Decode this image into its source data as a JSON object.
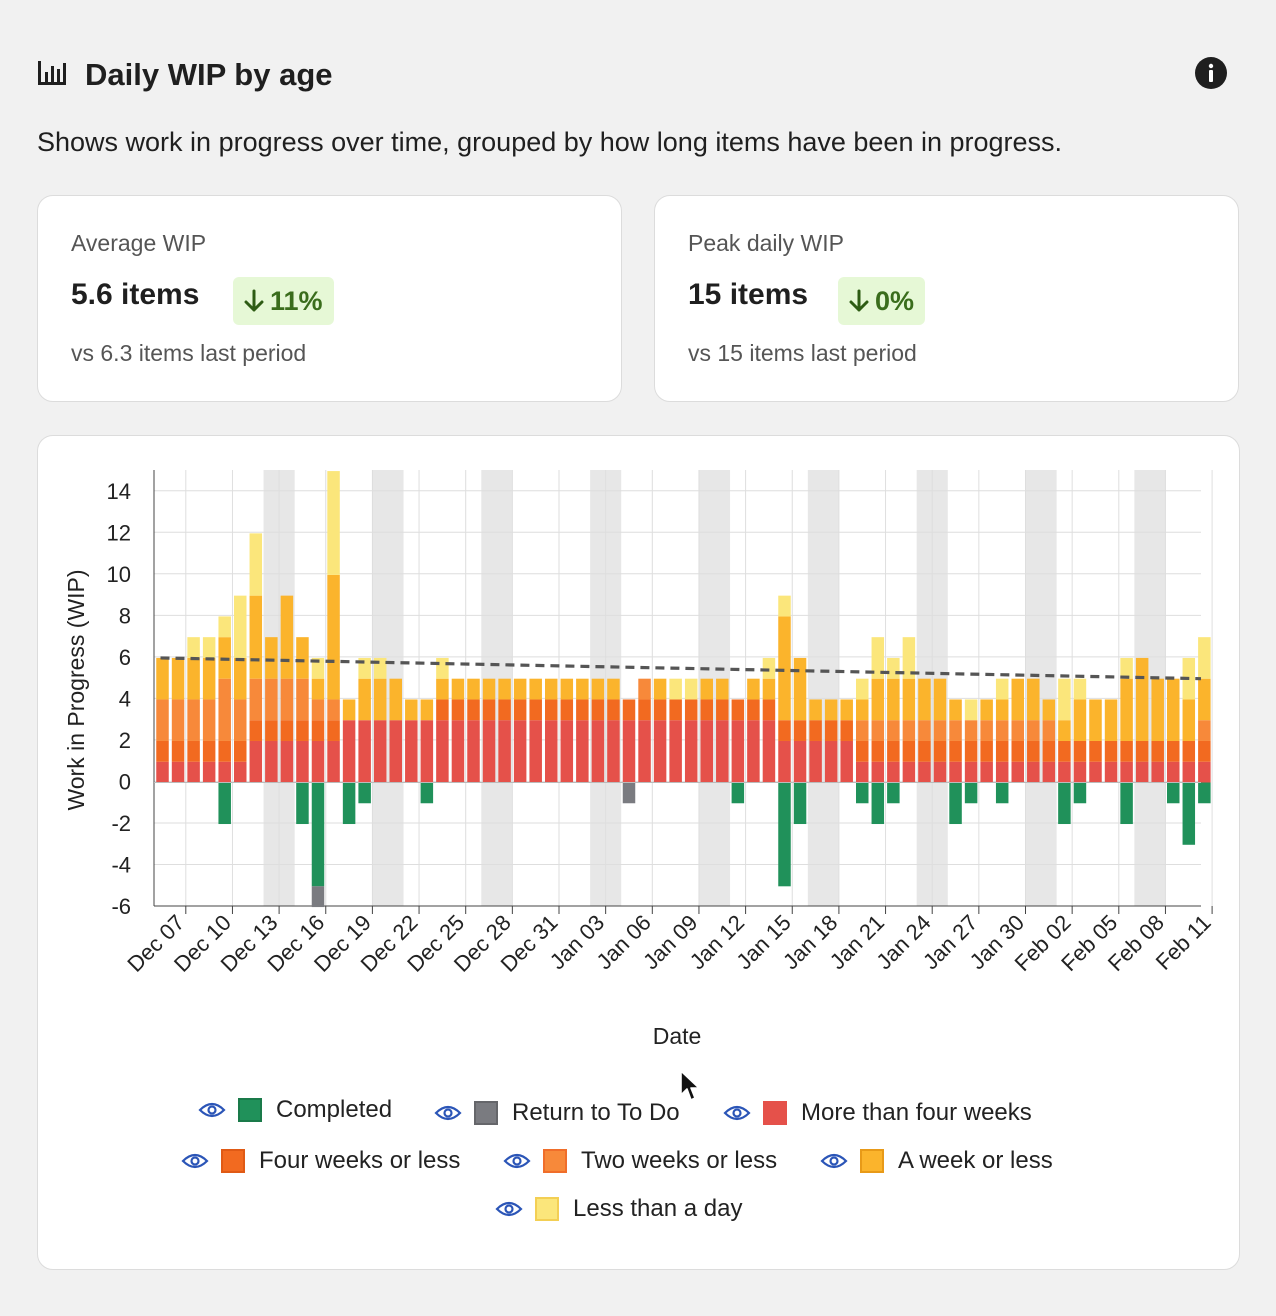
{
  "header": {
    "title": "Daily WIP by age",
    "description": "Shows work in progress over time, grouped by how long items have been in progress."
  },
  "stats": [
    {
      "label": "Average WIP",
      "value": "5.6 items",
      "change": "11%",
      "direction": "down",
      "comparison": "vs 6.3 items last period"
    },
    {
      "label": "Peak daily WIP",
      "value": "15 items",
      "change": "0%",
      "direction": "down",
      "comparison": "vs 15 items last period"
    }
  ],
  "colors": {
    "completed": "#20915a",
    "return": "#7a7b80",
    "more4w": "#e5514a",
    "four": "#f26a20",
    "two": "#f7893a",
    "week": "#fbb42c",
    "day": "#fbe67b",
    "trend": "#555555",
    "weekend": "#e7e7e7",
    "accent_eye": "#2b55b7"
  },
  "legend": [
    {
      "key": "completed",
      "label": "Completed",
      "icon": "eye-icon"
    },
    {
      "key": "return",
      "label": "Return to To Do",
      "icon": "eye-icon"
    },
    {
      "key": "more4w",
      "label": "More than four weeks",
      "icon": "eye-icon"
    },
    {
      "key": "four",
      "label": "Four weeks or less",
      "icon": "eye-icon"
    },
    {
      "key": "two",
      "label": "Two weeks or less",
      "icon": "eye-icon"
    },
    {
      "key": "week",
      "label": "A week or less",
      "icon": "eye-icon"
    },
    {
      "key": "day",
      "label": "Less than a day",
      "icon": "eye-icon"
    }
  ],
  "chart_data": {
    "type": "bar",
    "stacked": true,
    "xlabel": "Date",
    "ylabel": "Work in Progress (WIP)",
    "ylim": [
      -6,
      15
    ],
    "yticks": [
      -6,
      -4,
      -2,
      0,
      2,
      4,
      6,
      8,
      10,
      12,
      14
    ],
    "x_tick_labels": [
      "Dec 07",
      "Dec 10",
      "Dec 13",
      "Dec 16",
      "Dec 19",
      "Dec 22",
      "Dec 25",
      "Dec 28",
      "Dec 31",
      "Jan 03",
      "Jan 06",
      "Jan 09",
      "Jan 12",
      "Jan 15",
      "Jan 18",
      "Jan 21",
      "Jan 24",
      "Jan 27",
      "Jan 30",
      "Feb 02",
      "Feb 05",
      "Feb 08",
      "Feb 11"
    ],
    "categories": [
      "Dec 07",
      "Dec 08",
      "Dec 09",
      "Dec 10",
      "Dec 11",
      "Dec 12",
      "Dec 13",
      "Dec 14",
      "Dec 15",
      "Dec 16",
      "Dec 17",
      "Dec 18",
      "Dec 19",
      "Dec 20",
      "Dec 21",
      "Dec 22",
      "Dec 23",
      "Dec 24",
      "Dec 25",
      "Dec 26",
      "Dec 27",
      "Dec 28",
      "Dec 29",
      "Dec 30",
      "Dec 31",
      "Jan 01",
      "Jan 02",
      "Jan 03",
      "Jan 04",
      "Jan 05",
      "Jan 06",
      "Jan 07",
      "Jan 08",
      "Jan 09",
      "Jan 10",
      "Jan 11",
      "Jan 12",
      "Jan 13",
      "Jan 14",
      "Jan 15",
      "Jan 16",
      "Jan 17",
      "Jan 18",
      "Jan 19",
      "Jan 20",
      "Jan 21",
      "Jan 22",
      "Jan 23",
      "Jan 24",
      "Jan 25",
      "Jan 26",
      "Jan 27",
      "Jan 28",
      "Jan 29",
      "Jan 30",
      "Jan 31",
      "Feb 01",
      "Feb 02",
      "Feb 03",
      "Feb 04",
      "Feb 05",
      "Feb 06",
      "Feb 07",
      "Feb 08",
      "Feb 09",
      "Feb 10",
      "Feb 11",
      "Feb 12"
    ],
    "weekend_bands": [
      [
        "Dec 14",
        "Dec 15"
      ],
      [
        "Dec 21",
        "Dec 22"
      ],
      [
        "Dec 28",
        "Dec 29"
      ],
      [
        "Jan 04",
        "Jan 05"
      ],
      [
        "Jan 11",
        "Jan 12"
      ],
      [
        "Jan 18",
        "Jan 19"
      ],
      [
        "Jan 25",
        "Jan 26"
      ],
      [
        "Feb 01",
        "Feb 02"
      ],
      [
        "Feb 08",
        "Feb 09"
      ]
    ],
    "series": [
      {
        "key": "more4w",
        "name": "More than four weeks",
        "values": [
          1,
          1,
          1,
          1,
          1,
          1,
          2,
          2,
          2,
          2,
          2,
          2,
          3,
          3,
          3,
          3,
          3,
          3,
          3,
          3,
          3,
          3,
          3,
          3,
          3,
          3,
          3,
          3,
          3,
          3,
          3,
          3,
          3,
          3,
          3,
          3,
          3,
          3,
          3,
          3,
          2,
          2,
          2,
          2,
          2,
          1,
          1,
          1,
          1,
          1,
          1,
          1,
          1,
          1,
          1,
          1,
          1,
          1,
          1,
          1,
          1,
          1,
          1,
          1,
          1,
          1,
          1,
          1
        ]
      },
      {
        "key": "four",
        "name": "Four weeks or less",
        "values": [
          1,
          1,
          1,
          1,
          1,
          1,
          1,
          1,
          1,
          1,
          1,
          1,
          0,
          0,
          0,
          0,
          0,
          0,
          1,
          1,
          1,
          1,
          1,
          1,
          1,
          1,
          1,
          1,
          1,
          1,
          1,
          1,
          1,
          1,
          1,
          1,
          1,
          1,
          1,
          1,
          1,
          1,
          1,
          1,
          1,
          1,
          1,
          1,
          1,
          1,
          1,
          1,
          1,
          1,
          1,
          1,
          1,
          1,
          1,
          1,
          1,
          1,
          1,
          1,
          1,
          1,
          1,
          1
        ]
      },
      {
        "key": "two",
        "name": "Two weeks or less",
        "values": [
          2,
          2,
          2,
          2,
          3,
          2,
          2,
          2,
          2,
          2,
          1,
          1,
          0,
          0,
          0,
          0,
          0,
          0,
          0,
          0,
          0,
          0,
          0,
          0,
          0,
          0,
          0,
          0,
          0,
          0,
          0,
          1,
          0,
          0,
          0,
          0,
          0,
          0,
          0,
          0,
          0,
          0,
          0,
          0,
          0,
          1,
          1,
          1,
          1,
          1,
          1,
          1,
          1,
          1,
          1,
          1,
          1,
          1,
          0,
          0,
          0,
          0,
          0,
          0,
          0,
          0,
          0,
          1
        ]
      },
      {
        "key": "week",
        "name": "A week or less",
        "values": [
          2,
          2,
          2,
          2,
          2,
          2,
          4,
          2,
          4,
          2,
          1,
          6,
          1,
          2,
          2,
          2,
          1,
          1,
          1,
          1,
          1,
          1,
          1,
          1,
          1,
          1,
          1,
          1,
          1,
          1,
          0,
          0,
          1,
          0,
          0,
          1,
          1,
          0,
          1,
          1,
          5,
          3,
          1,
          1,
          1,
          1,
          2,
          2,
          2,
          2,
          2,
          1,
          0,
          1,
          1,
          2,
          2,
          1,
          1,
          2,
          2,
          2,
          3,
          4,
          3,
          3,
          2,
          2
        ]
      },
      {
        "key": "day",
        "name": "Less than a day",
        "values": [
          0,
          0,
          1,
          1,
          1,
          3,
          3,
          0,
          0,
          0,
          1,
          5,
          0,
          1,
          1,
          0,
          0,
          0,
          1,
          0,
          0,
          0,
          0,
          0,
          0,
          0,
          0,
          0,
          0,
          0,
          0,
          0,
          0,
          1,
          1,
          0,
          0,
          0,
          0,
          1,
          1,
          0,
          0,
          0,
          0,
          1,
          2,
          1,
          2,
          0,
          0,
          0,
          1,
          0,
          1,
          0,
          0,
          0,
          2,
          1,
          0,
          0,
          1,
          0,
          0,
          0,
          2,
          2
        ]
      },
      {
        "key": "completed",
        "name": "Completed",
        "values": [
          0,
          0,
          0,
          0,
          -2,
          0,
          0,
          0,
          0,
          -2,
          -5,
          0,
          -2,
          -1,
          0,
          0,
          0,
          -1,
          0,
          0,
          0,
          0,
          0,
          0,
          0,
          0,
          0,
          0,
          0,
          0,
          0,
          0,
          0,
          0,
          0,
          0,
          0,
          -1,
          0,
          0,
          -5,
          -2,
          0,
          0,
          0,
          -1,
          -2,
          -1,
          0,
          0,
          0,
          -2,
          -1,
          0,
          -1,
          0,
          0,
          0,
          -2,
          -1,
          0,
          0,
          -2,
          0,
          0,
          -1,
          -3,
          -1
        ]
      },
      {
        "key": "return",
        "name": "Return to To Do",
        "values": [
          0,
          0,
          0,
          0,
          0,
          0,
          0,
          0,
          0,
          0,
          -1,
          0,
          0,
          0,
          0,
          0,
          0,
          0,
          0,
          0,
          0,
          0,
          0,
          0,
          0,
          0,
          0,
          0,
          0,
          0,
          -1,
          0,
          0,
          0,
          0,
          0,
          0,
          0,
          0,
          0,
          0,
          0,
          0,
          0,
          0,
          0,
          0,
          0,
          0,
          0,
          0,
          0,
          0,
          0,
          0,
          0,
          0,
          0,
          0,
          0,
          0,
          0,
          0,
          0,
          0,
          0,
          0,
          0
        ]
      }
    ],
    "trend_line": {
      "start": 6.0,
      "end": 5.0,
      "style": "dashed"
    },
    "grid": true
  }
}
